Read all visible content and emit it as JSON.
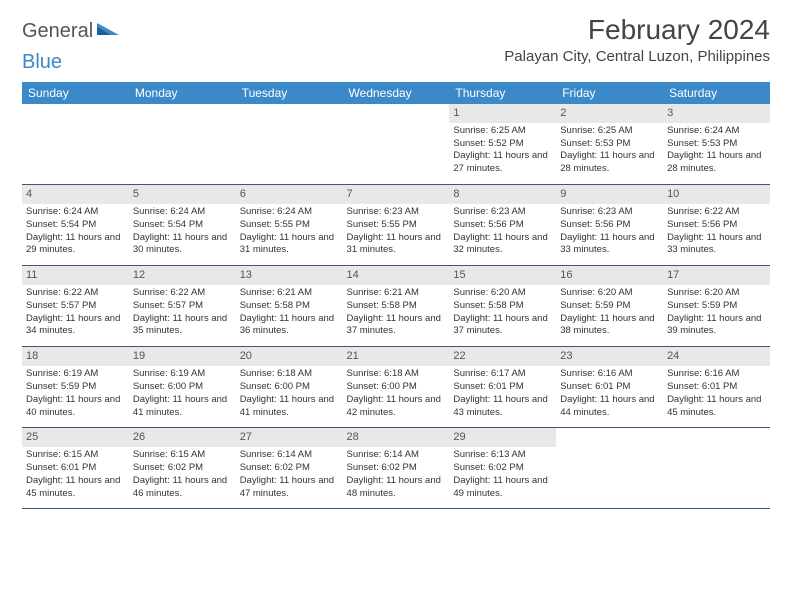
{
  "logo": {
    "part1": "General",
    "part2": "Blue"
  },
  "title": "February 2024",
  "location": "Palayan City, Central Luzon, Philippines",
  "colors": {
    "header_bg": "#3b89c9",
    "header_text": "#ffffff",
    "daynum_bg": "#e8e8e8",
    "border": "#3b5a7a",
    "text": "#333333",
    "title_text": "#444444",
    "logo_gray": "#555555",
    "logo_blue": "#3b89c9",
    "page_bg": "#ffffff"
  },
  "typography": {
    "title_fontsize": 28,
    "location_fontsize": 15,
    "dayheader_fontsize": 12,
    "daynum_fontsize": 11,
    "body_fontsize": 9.5
  },
  "day_names": [
    "Sunday",
    "Monday",
    "Tuesday",
    "Wednesday",
    "Thursday",
    "Friday",
    "Saturday"
  ],
  "weeks": [
    [
      {
        "empty": true
      },
      {
        "empty": true
      },
      {
        "empty": true
      },
      {
        "empty": true
      },
      {
        "day": "1",
        "sunrise": "Sunrise: 6:25 AM",
        "sunset": "Sunset: 5:52 PM",
        "daylight": "Daylight: 11 hours and 27 minutes."
      },
      {
        "day": "2",
        "sunrise": "Sunrise: 6:25 AM",
        "sunset": "Sunset: 5:53 PM",
        "daylight": "Daylight: 11 hours and 28 minutes."
      },
      {
        "day": "3",
        "sunrise": "Sunrise: 6:24 AM",
        "sunset": "Sunset: 5:53 PM",
        "daylight": "Daylight: 11 hours and 28 minutes."
      }
    ],
    [
      {
        "day": "4",
        "sunrise": "Sunrise: 6:24 AM",
        "sunset": "Sunset: 5:54 PM",
        "daylight": "Daylight: 11 hours and 29 minutes."
      },
      {
        "day": "5",
        "sunrise": "Sunrise: 6:24 AM",
        "sunset": "Sunset: 5:54 PM",
        "daylight": "Daylight: 11 hours and 30 minutes."
      },
      {
        "day": "6",
        "sunrise": "Sunrise: 6:24 AM",
        "sunset": "Sunset: 5:55 PM",
        "daylight": "Daylight: 11 hours and 31 minutes."
      },
      {
        "day": "7",
        "sunrise": "Sunrise: 6:23 AM",
        "sunset": "Sunset: 5:55 PM",
        "daylight": "Daylight: 11 hours and 31 minutes."
      },
      {
        "day": "8",
        "sunrise": "Sunrise: 6:23 AM",
        "sunset": "Sunset: 5:56 PM",
        "daylight": "Daylight: 11 hours and 32 minutes."
      },
      {
        "day": "9",
        "sunrise": "Sunrise: 6:23 AM",
        "sunset": "Sunset: 5:56 PM",
        "daylight": "Daylight: 11 hours and 33 minutes."
      },
      {
        "day": "10",
        "sunrise": "Sunrise: 6:22 AM",
        "sunset": "Sunset: 5:56 PM",
        "daylight": "Daylight: 11 hours and 33 minutes."
      }
    ],
    [
      {
        "day": "11",
        "sunrise": "Sunrise: 6:22 AM",
        "sunset": "Sunset: 5:57 PM",
        "daylight": "Daylight: 11 hours and 34 minutes."
      },
      {
        "day": "12",
        "sunrise": "Sunrise: 6:22 AM",
        "sunset": "Sunset: 5:57 PM",
        "daylight": "Daylight: 11 hours and 35 minutes."
      },
      {
        "day": "13",
        "sunrise": "Sunrise: 6:21 AM",
        "sunset": "Sunset: 5:58 PM",
        "daylight": "Daylight: 11 hours and 36 minutes."
      },
      {
        "day": "14",
        "sunrise": "Sunrise: 6:21 AM",
        "sunset": "Sunset: 5:58 PM",
        "daylight": "Daylight: 11 hours and 37 minutes."
      },
      {
        "day": "15",
        "sunrise": "Sunrise: 6:20 AM",
        "sunset": "Sunset: 5:58 PM",
        "daylight": "Daylight: 11 hours and 37 minutes."
      },
      {
        "day": "16",
        "sunrise": "Sunrise: 6:20 AM",
        "sunset": "Sunset: 5:59 PM",
        "daylight": "Daylight: 11 hours and 38 minutes."
      },
      {
        "day": "17",
        "sunrise": "Sunrise: 6:20 AM",
        "sunset": "Sunset: 5:59 PM",
        "daylight": "Daylight: 11 hours and 39 minutes."
      }
    ],
    [
      {
        "day": "18",
        "sunrise": "Sunrise: 6:19 AM",
        "sunset": "Sunset: 5:59 PM",
        "daylight": "Daylight: 11 hours and 40 minutes."
      },
      {
        "day": "19",
        "sunrise": "Sunrise: 6:19 AM",
        "sunset": "Sunset: 6:00 PM",
        "daylight": "Daylight: 11 hours and 41 minutes."
      },
      {
        "day": "20",
        "sunrise": "Sunrise: 6:18 AM",
        "sunset": "Sunset: 6:00 PM",
        "daylight": "Daylight: 11 hours and 41 minutes."
      },
      {
        "day": "21",
        "sunrise": "Sunrise: 6:18 AM",
        "sunset": "Sunset: 6:00 PM",
        "daylight": "Daylight: 11 hours and 42 minutes."
      },
      {
        "day": "22",
        "sunrise": "Sunrise: 6:17 AM",
        "sunset": "Sunset: 6:01 PM",
        "daylight": "Daylight: 11 hours and 43 minutes."
      },
      {
        "day": "23",
        "sunrise": "Sunrise: 6:16 AM",
        "sunset": "Sunset: 6:01 PM",
        "daylight": "Daylight: 11 hours and 44 minutes."
      },
      {
        "day": "24",
        "sunrise": "Sunrise: 6:16 AM",
        "sunset": "Sunset: 6:01 PM",
        "daylight": "Daylight: 11 hours and 45 minutes."
      }
    ],
    [
      {
        "day": "25",
        "sunrise": "Sunrise: 6:15 AM",
        "sunset": "Sunset: 6:01 PM",
        "daylight": "Daylight: 11 hours and 45 minutes."
      },
      {
        "day": "26",
        "sunrise": "Sunrise: 6:15 AM",
        "sunset": "Sunset: 6:02 PM",
        "daylight": "Daylight: 11 hours and 46 minutes."
      },
      {
        "day": "27",
        "sunrise": "Sunrise: 6:14 AM",
        "sunset": "Sunset: 6:02 PM",
        "daylight": "Daylight: 11 hours and 47 minutes."
      },
      {
        "day": "28",
        "sunrise": "Sunrise: 6:14 AM",
        "sunset": "Sunset: 6:02 PM",
        "daylight": "Daylight: 11 hours and 48 minutes."
      },
      {
        "day": "29",
        "sunrise": "Sunrise: 6:13 AM",
        "sunset": "Sunset: 6:02 PM",
        "daylight": "Daylight: 11 hours and 49 minutes."
      },
      {
        "empty": true
      },
      {
        "empty": true
      }
    ]
  ]
}
